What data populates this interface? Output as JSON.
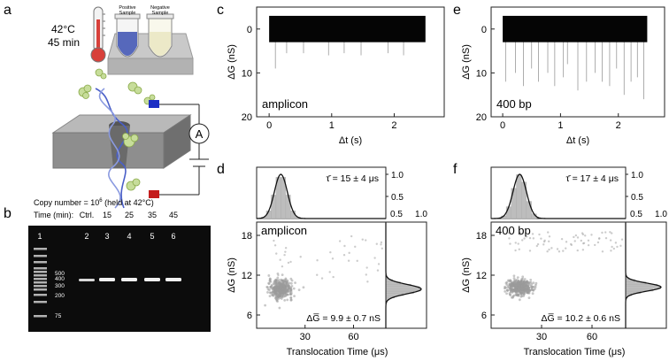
{
  "panels": {
    "a": {
      "letter": "a",
      "temp": "42°C",
      "duration": "45 min",
      "tube_positive": [
        "Positive",
        "Sample"
      ],
      "tube_negative": [
        "Negative",
        "Sample"
      ],
      "ammeter": "A",
      "colors": {
        "positive_fluid": "#3a4fb0",
        "electrode_pos": "#1c2fc4",
        "electrode_neg": "#c41c1c",
        "membrane": "#8e8e8e",
        "dna": "#5a6fd0",
        "protein": "#9fbf5c"
      }
    },
    "b": {
      "letter": "b",
      "copy_number": "Copy number = 10",
      "copy_exp": "6",
      "copy_tail": " (held at 42°C)",
      "time_label": "Time (min):",
      "time_values": [
        "Ctrl.",
        "15",
        "25",
        "35",
        "45"
      ],
      "lane_numbers": [
        "1",
        "2",
        "3",
        "4",
        "5",
        "6"
      ],
      "ladder_labels": [
        "500",
        "400",
        "300",
        "200",
        "75"
      ]
    },
    "c": {
      "letter": "c",
      "label": "amplicon",
      "xlabel": "Δt (s)",
      "ylabel": "ΔG (nS)",
      "xticks": [
        0,
        1,
        2
      ],
      "yticks": [
        0,
        10,
        20
      ],
      "xlim": [
        -0.2,
        2.8
      ],
      "ylim": [
        20,
        -5
      ],
      "baseline_band": [
        -3,
        3
      ],
      "events_x": [
        0.1,
        0.28,
        0.55,
        0.95,
        1.2,
        1.47,
        1.9,
        2.15
      ],
      "events_y": [
        9,
        5.5,
        5.5,
        6,
        5.5,
        6,
        5.5,
        6
      ]
    },
    "e": {
      "letter": "e",
      "label": "400 bp",
      "xlabel": "Δt (s)",
      "ylabel": "ΔG (nS)",
      "xticks": [
        0,
        1,
        2
      ],
      "yticks": [
        0,
        10,
        20
      ],
      "xlim": [
        -0.2,
        2.8
      ],
      "ylim": [
        20,
        -5
      ],
      "baseline_band": [
        -3,
        3
      ],
      "events_x": [
        0.05,
        0.22,
        0.36,
        0.5,
        0.62,
        0.78,
        0.9,
        1.05,
        1.12,
        1.3,
        1.45,
        1.6,
        1.72,
        1.85,
        1.97,
        2.1,
        2.22,
        2.33,
        2.44
      ],
      "events_y": [
        12,
        10,
        13,
        9,
        12,
        10,
        13,
        11,
        8,
        14,
        12,
        10,
        12,
        13,
        9,
        15,
        12,
        11,
        16
      ]
    },
    "d": {
      "letter": "d",
      "label": "amplicon",
      "tau_text": "τ̄ = 15 ± 4 μs",
      "g_text": "ΔG̅ = 9.9 ± 0.7 nS",
      "xlabel": "Translocation Time (μs)",
      "ylabel": "ΔG (nS)",
      "xticks": [
        30,
        60
      ],
      "yticks": [
        6,
        12,
        18
      ],
      "xlim": [
        0,
        80
      ],
      "ylim": [
        4,
        20
      ],
      "top_yticks": [
        0.5,
        1.0
      ],
      "right_xticks": [
        0.5,
        1.0
      ],
      "tau_mean": 15,
      "tau_sd": 4,
      "g_mean": 9.9,
      "g_sd": 0.7
    },
    "f": {
      "letter": "f",
      "label": "400 bp",
      "tau_text": "τ̄ = 17 ± 4 μs",
      "g_text": "ΔG̅ = 10.2 ± 0.6 nS",
      "xlabel": "Translocation Time (μs)",
      "ylabel": "ΔG (nS)",
      "xticks": [
        30,
        60
      ],
      "yticks": [
        6,
        12,
        18
      ],
      "xlim": [
        0,
        80
      ],
      "ylim": [
        4,
        20
      ],
      "top_yticks": [
        0.5,
        1.0
      ],
      "right_xticks": [
        0.5,
        1.0
      ],
      "tau_mean": 17,
      "tau_sd": 4,
      "g_mean": 10.2,
      "g_sd": 0.6
    }
  }
}
